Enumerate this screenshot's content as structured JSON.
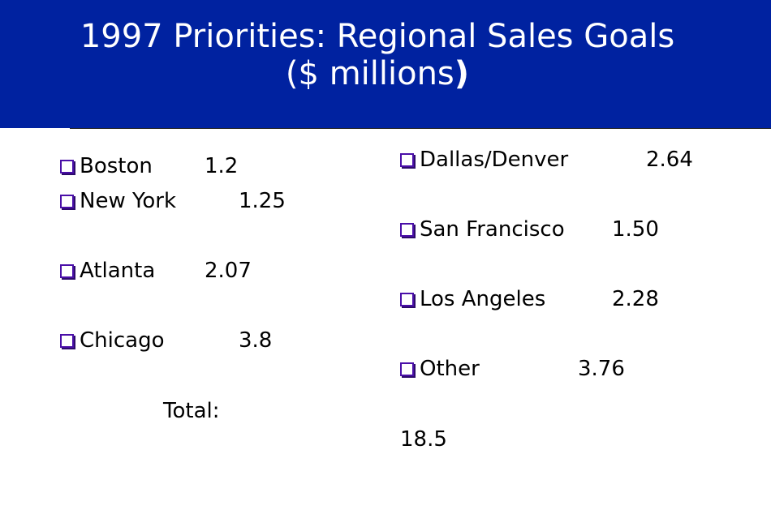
{
  "slide": {
    "title_line1": "1997 Priorities: Regional Sales Goals",
    "title_line2_open": "($ millions",
    "title_line2_close": ")"
  },
  "left_column": [
    {
      "label": "Boston",
      "value": "1.2"
    },
    {
      "label": "New York",
      "value": "1.25"
    },
    {
      "label": "Atlanta",
      "value": "2.07"
    },
    {
      "label": "Chicago",
      "value": "3.8"
    }
  ],
  "right_column": [
    {
      "label": "Dallas/Denver",
      "value": "2.64"
    },
    {
      "label": "San Francisco",
      "value": "1.50"
    },
    {
      "label": "Los Angeles",
      "value": "2.28"
    },
    {
      "label": "Other",
      "value": "3.76"
    }
  ],
  "total": {
    "label": "Total:",
    "value": "18.5"
  },
  "colors": {
    "header_bg": "#0022a0",
    "bullet": "#4a0fa8"
  },
  "icons": {
    "bullet": "checkbox-bullet-icon"
  }
}
